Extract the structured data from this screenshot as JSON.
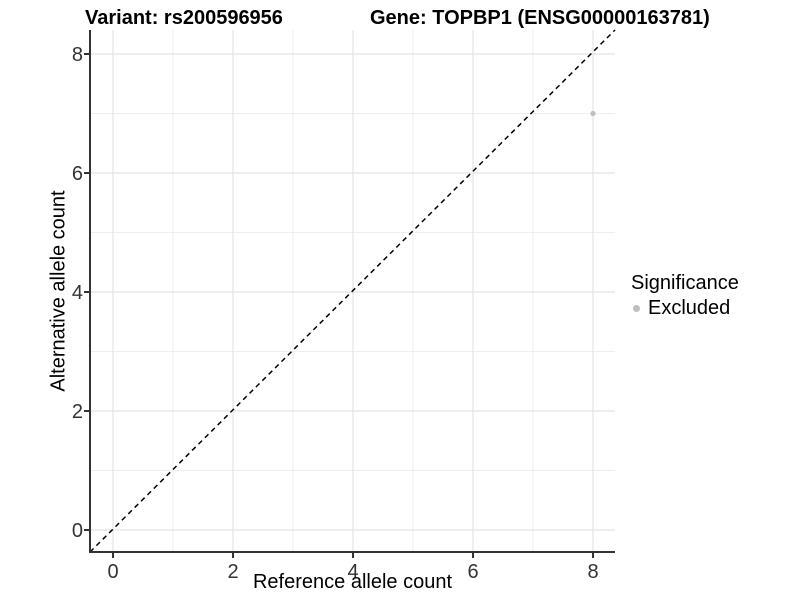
{
  "titles": {
    "left": "Variant: rs200596956",
    "right": "Gene: TOPBP1 (ENSG00000163781)"
  },
  "chart_data": {
    "type": "scatter",
    "title_left": "Variant: rs200596956",
    "title_right": "Gene: TOPBP1 (ENSG00000163781)",
    "xlabel": "Reference allele count",
    "ylabel": "Alternative allele count",
    "xlim": [
      -0.4,
      8.4
    ],
    "ylim": [
      -0.4,
      8.4
    ],
    "x_major_ticks": [
      0,
      2,
      4,
      6,
      8
    ],
    "y_major_ticks": [
      0,
      2,
      4,
      6,
      8
    ],
    "x_minor_gridlines": [
      1,
      3,
      5,
      7
    ],
    "y_minor_gridlines": [
      1,
      3,
      5,
      7
    ],
    "grid": true,
    "reference_line": {
      "equation": "y = x",
      "style": "dashed",
      "color": "#000000"
    },
    "series": [
      {
        "name": "Excluded",
        "color": "#bebebe",
        "points": [
          {
            "x": 8,
            "y": 7
          }
        ]
      }
    ],
    "legend": {
      "title": "Significance",
      "position": "right",
      "items": [
        {
          "label": "Excluded",
          "color": "#bebebe"
        }
      ]
    },
    "style": {
      "axis_line": "#333333",
      "tick_label": "#333333",
      "grid_major": "#e4e4e4",
      "grid_minor": "#efefef",
      "background": "#ffffff"
    }
  }
}
